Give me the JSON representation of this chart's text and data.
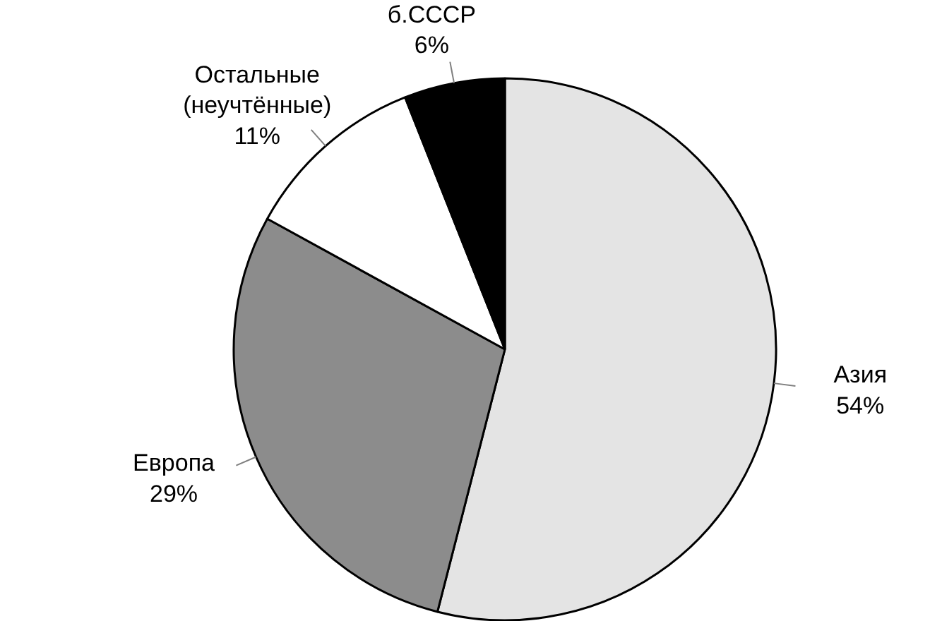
{
  "chart_data": {
    "type": "pie",
    "categories": [
      "Азия",
      "Европа",
      "Остальные\n(неучтённые)",
      "б.СССР"
    ],
    "values": [
      54,
      29,
      11,
      6
    ],
    "value_labels": [
      "54%",
      "29%",
      "11%",
      "6%"
    ],
    "colors": [
      "#e4e4e4",
      "#8c8c8c",
      "#ffffff",
      "#000000"
    ]
  }
}
